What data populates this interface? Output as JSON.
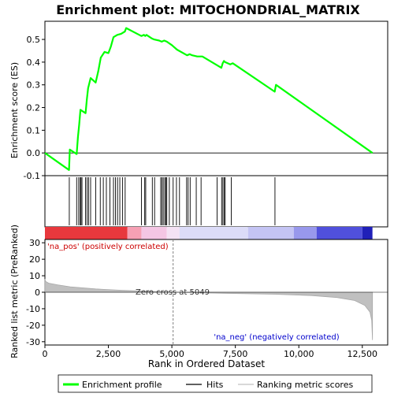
{
  "chart_data": {
    "type": "line",
    "title": "Enrichment plot: MITOCHONDRIAL_MATRIX",
    "es_panel": {
      "ylabel": "Enrichment score (ES)",
      "ylim": [
        -0.1,
        0.58
      ],
      "yticks": [
        -0.1,
        0.0,
        0.1,
        0.2,
        0.3,
        0.4,
        0.5
      ],
      "ytick_labels": [
        "-0.1",
        "0.0",
        "0.1",
        "0.2",
        "0.3",
        "0.4",
        "0.5"
      ],
      "series": [
        {
          "x": [
            0,
            950,
            980,
            1250,
            1300,
            1350,
            1400,
            1600,
            1650,
            1700,
            1800,
            2000,
            2100,
            2200,
            2350,
            2500,
            2600,
            2700,
            2850,
            3000,
            3150,
            3200,
            3800,
            3900,
            3950,
            4000,
            4200,
            4300,
            4500,
            4600,
            4700,
            4800,
            5000,
            5200,
            5600,
            5700,
            5800,
            6000,
            6200,
            6800,
            6950,
            7000,
            7050,
            7100,
            7300,
            7400,
            9050,
            9100,
            12900
          ],
          "y": [
            0.0,
            -0.075,
            0.015,
            -0.005,
            0.07,
            0.125,
            0.19,
            0.175,
            0.235,
            0.285,
            0.33,
            0.31,
            0.36,
            0.42,
            0.445,
            0.44,
            0.47,
            0.51,
            0.52,
            0.525,
            0.535,
            0.55,
            0.515,
            0.52,
            0.515,
            0.52,
            0.505,
            0.5,
            0.495,
            0.49,
            0.495,
            0.49,
            0.475,
            0.455,
            0.43,
            0.435,
            0.43,
            0.425,
            0.425,
            0.385,
            0.375,
            0.395,
            0.405,
            0.4,
            0.39,
            0.395,
            0.27,
            0.3,
            0.0
          ]
        }
      ]
    },
    "hits": [
      960,
      1250,
      1330,
      1390,
      1420,
      1460,
      1600,
      1660,
      1720,
      1800,
      2000,
      2180,
      2300,
      2420,
      2560,
      2700,
      2780,
      2860,
      2950,
      3060,
      3160,
      3800,
      3930,
      3970,
      4230,
      4320,
      4560,
      4610,
      4660,
      4720,
      4760,
      4800,
      4900,
      5050,
      5180,
      5300,
      5580,
      5640,
      5720,
      5960,
      6150,
      6780,
      6960,
      7010,
      7060,
      7100,
      7340,
      9060
    ],
    "rank_panel": {
      "ylabel": "Ranked list metric (PreRanked)",
      "ylim": [
        -32,
        32
      ],
      "yticks": [
        -30,
        -20,
        -10,
        0,
        10,
        20,
        30
      ],
      "ytick_labels": [
        "-30",
        "-20",
        "-10",
        "0",
        "10",
        "20",
        "30"
      ],
      "pos_label": "'na_pos' (positively correlated)",
      "neg_label": "'na_neg' (negatively correlated)",
      "zero_cross_label": "Zero cross at 5049",
      "zero_cross": 5049,
      "profile": [
        {
          "rank": 0,
          "value": 8.0
        },
        {
          "rank": 30,
          "value": 6.5
        },
        {
          "rank": 150,
          "value": 5.5
        },
        {
          "rank": 500,
          "value": 4.5
        },
        {
          "rank": 1000,
          "value": 3.3
        },
        {
          "rank": 2000,
          "value": 2.0
        },
        {
          "rank": 3000,
          "value": 1.2
        },
        {
          "rank": 4000,
          "value": 0.6
        },
        {
          "rank": 5049,
          "value": 0.0
        },
        {
          "rank": 7000,
          "value": -0.6
        },
        {
          "rank": 9000,
          "value": -1.2
        },
        {
          "rank": 10500,
          "value": -2.0
        },
        {
          "rank": 11500,
          "value": -3.2
        },
        {
          "rank": 12200,
          "value": -5.0
        },
        {
          "rank": 12600,
          "value": -8.0
        },
        {
          "rank": 12800,
          "value": -12.0
        },
        {
          "rank": 12870,
          "value": -17.0
        },
        {
          "rank": 12900,
          "value": -29.0
        }
      ]
    },
    "xlabel": "Rank in Ordered Dataset",
    "xlim": [
      0,
      13500
    ],
    "xticks": [
      0,
      2500,
      5000,
      7500,
      10000,
      12500
    ],
    "xtick_labels": [
      "0",
      "2,500",
      "5,000",
      "7,500",
      "10,000",
      "12,500"
    ],
    "dataset_size": 12900,
    "heat_bar": [
      {
        "start": 0,
        "end": 3250,
        "color": "#e8383d"
      },
      {
        "start": 3250,
        "end": 3800,
        "color": "#f6a0b4"
      },
      {
        "start": 3800,
        "end": 4800,
        "color": "#f4c6e4"
      },
      {
        "start": 4800,
        "end": 5300,
        "color": "#f4e2f4"
      },
      {
        "start": 5300,
        "end": 8000,
        "color": "#dcdcf8"
      },
      {
        "start": 8000,
        "end": 9800,
        "color": "#c4c4f4"
      },
      {
        "start": 9800,
        "end": 10700,
        "color": "#9898ec"
      },
      {
        "start": 10700,
        "end": 12500,
        "color": "#5050dc"
      },
      {
        "start": 12500,
        "end": 12900,
        "color": "#2020b8"
      }
    ],
    "legend": {
      "placement": "bottom",
      "entries": [
        {
          "label": "Enrichment profile",
          "color": "#00ff00"
        },
        {
          "label": "Hits",
          "color": "#000000"
        },
        {
          "label": "Ranking metric scores",
          "color": "#c0c0c0"
        }
      ]
    },
    "colors": {
      "es_line": "#00ff00",
      "pos_text": "#cc0000",
      "neg_text": "#0000cc",
      "metric_fill": "#c0c0c0"
    }
  }
}
